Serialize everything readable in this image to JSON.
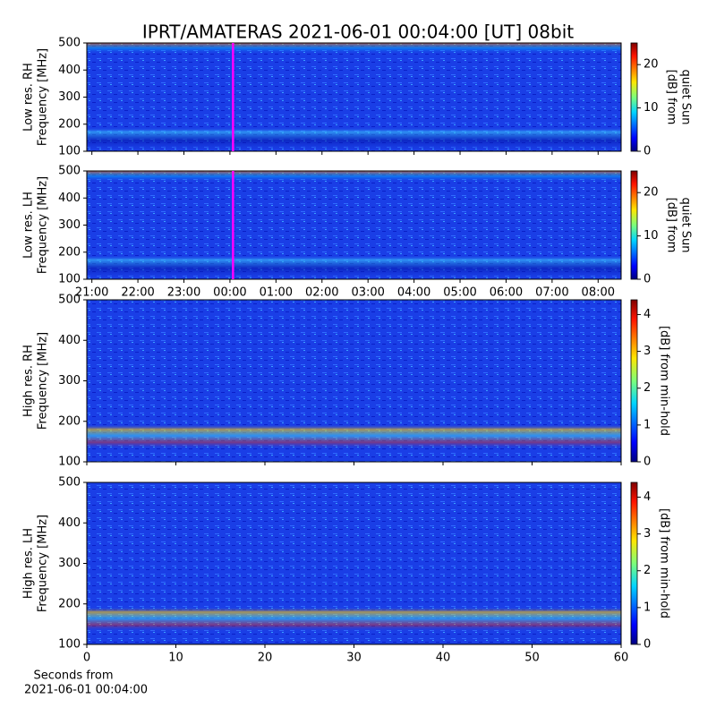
{
  "title": "IPRT/AMATERAS 2021-06-01 00:04:00 [UT]   08bit",
  "chart_data": [
    {
      "type": "heatmap",
      "ylabel": [
        "Low res. RH",
        "Frequency [MHz]"
      ],
      "ylim": [
        100,
        500
      ],
      "yticks": [
        100,
        200,
        300,
        400,
        500
      ],
      "clim": [
        0,
        25
      ],
      "cticks": [
        0,
        10,
        20
      ],
      "clabel": [
        "[dB] from",
        "quiet Sun"
      ],
      "marker_x": 0.0667
    },
    {
      "type": "heatmap",
      "ylabel": [
        "Low res. LH",
        "Frequency [MHz]"
      ],
      "ylim": [
        100,
        500
      ],
      "yticks": [
        100,
        200,
        300,
        400,
        500
      ],
      "clim": [
        0,
        25
      ],
      "cticks": [
        0,
        10,
        20
      ],
      "clabel": [
        "[dB] from",
        "quiet Sun"
      ],
      "marker_x": 0.0667,
      "xlim": [
        -3.11,
        8.5
      ],
      "xticks": [
        {
          "value": -3,
          "label": "21:00"
        },
        {
          "value": -2,
          "label": "22:00"
        },
        {
          "value": -1,
          "label": "23:00"
        },
        {
          "value": 0,
          "label": "00:00"
        },
        {
          "value": 1,
          "label": "01:00"
        },
        {
          "value": 2,
          "label": "02:00"
        },
        {
          "value": 3,
          "label": "03:00"
        },
        {
          "value": 4,
          "label": "04:00"
        },
        {
          "value": 5,
          "label": "05:00"
        },
        {
          "value": 6,
          "label": "06:00"
        },
        {
          "value": 7,
          "label": "07:00"
        },
        {
          "value": 8,
          "label": "08:00"
        }
      ]
    },
    {
      "type": "heatmap",
      "ylabel": [
        "High res. RH",
        "Frequency [MHz]"
      ],
      "ylim": [
        100,
        500
      ],
      "yticks": [
        100,
        200,
        300,
        400,
        500
      ],
      "clim": [
        0,
        4.4
      ],
      "cticks": [
        0,
        1,
        2,
        3,
        4
      ],
      "clabel": [
        "[dB] from min-hold"
      ]
    },
    {
      "type": "heatmap",
      "ylabel": [
        "High res. LH",
        "Frequency [MHz]"
      ],
      "ylim": [
        100,
        500
      ],
      "yticks": [
        100,
        200,
        300,
        400,
        500
      ],
      "clim": [
        0,
        4.4
      ],
      "cticks": [
        0,
        1,
        2,
        3,
        4
      ],
      "clabel": [
        "[dB] from min-hold"
      ],
      "xlim": [
        0,
        60
      ],
      "xticks": [
        0,
        10,
        20,
        30,
        40,
        50,
        60
      ],
      "xlabel": [
        "Seconds from",
        "2021-06-01 00:04:00"
      ]
    }
  ]
}
